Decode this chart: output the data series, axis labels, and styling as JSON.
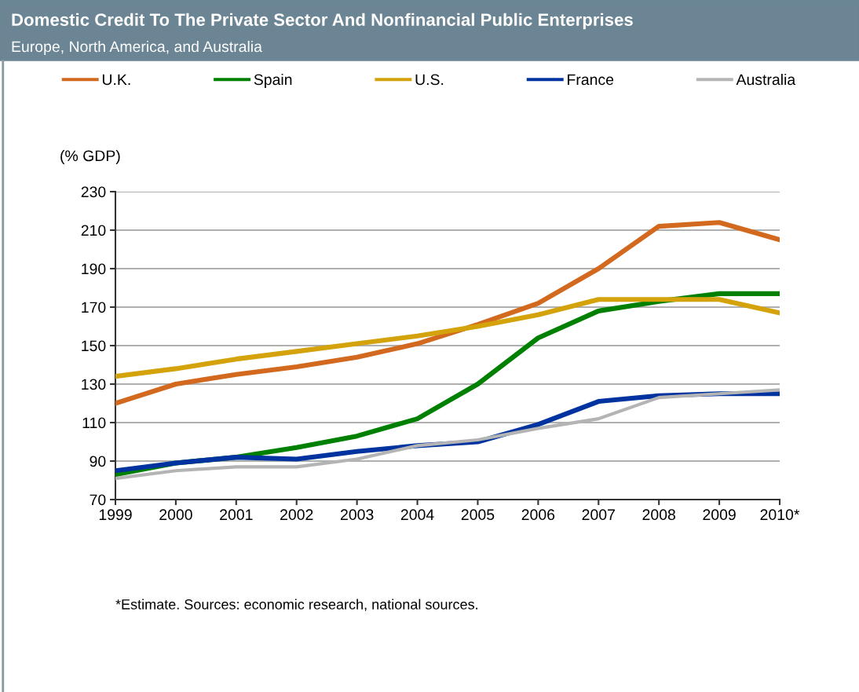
{
  "chart_data": {
    "type": "line",
    "title": "Domestic Credit To The Private Sector And Nonfinancial Public Enterprises",
    "subtitle": "Europe, North America, and Australia",
    "ylabel": "(% GDP)",
    "categories": [
      "1999",
      "2000",
      "2001",
      "2002",
      "2003",
      "2004",
      "2005",
      "2006",
      "2007",
      "2008",
      "2009",
      "2010*"
    ],
    "series": [
      {
        "name": "U.K.",
        "color": "#d2691e",
        "values": [
          120,
          130,
          135,
          139,
          144,
          151,
          161,
          172,
          190,
          212,
          214,
          205
        ]
      },
      {
        "name": "Spain",
        "color": "#008000",
        "values": [
          83,
          89,
          92,
          97,
          103,
          112,
          130,
          154,
          168,
          173,
          177,
          177
        ]
      },
      {
        "name": "U.S.",
        "color": "#d4a20a",
        "values": [
          134,
          138,
          143,
          147,
          151,
          155,
          160,
          166,
          174,
          174,
          174,
          167
        ]
      },
      {
        "name": "France",
        "color": "#0033a0",
        "values": [
          85,
          89,
          92,
          91,
          95,
          98,
          100,
          109,
          121,
          124,
          125,
          125
        ]
      },
      {
        "name": "Australia",
        "color": "#b4b4b4",
        "values": [
          81,
          85,
          87,
          87,
          91,
          98,
          101,
          107,
          112,
          123,
          125,
          127
        ]
      }
    ],
    "ylim": [
      70,
      230
    ],
    "yticks": [
      70,
      90,
      110,
      130,
      150,
      170,
      190,
      210,
      230
    ],
    "grid": "y",
    "legend": "top",
    "marker": "none",
    "line_style": "solid",
    "annotations": [
      "*Estimate. Sources: economic research, national sources."
    ]
  }
}
